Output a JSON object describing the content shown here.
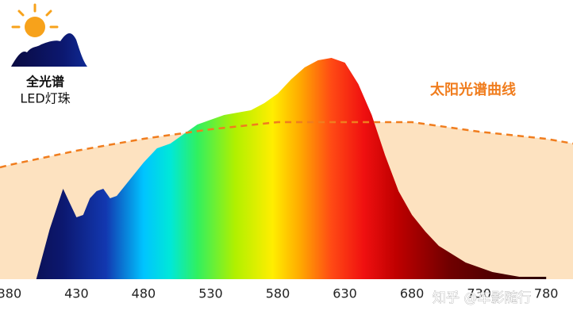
{
  "chart_data": {
    "type": "area",
    "xlim": [
      373,
      800
    ],
    "ylim": [
      0,
      100
    ],
    "xticks": [
      380,
      430,
      480,
      530,
      580,
      630,
      680,
      730,
      780
    ],
    "annotations": [
      "全光谱",
      "LED灯珠",
      "知乎 @车影随行"
    ],
    "series": [
      {
        "x": [
          380,
          400,
          410,
          420,
          425,
          430,
          435,
          440,
          445,
          450,
          455,
          460,
          470,
          480,
          490,
          500,
          510,
          520,
          530,
          540,
          550,
          560,
          570,
          580,
          590,
          600,
          610,
          620,
          630,
          640,
          650,
          660,
          670,
          680,
          690,
          700,
          720,
          740,
          760,
          780
        ],
        "values": [
          0,
          0,
          21,
          38,
          32,
          26,
          27,
          34,
          37,
          38,
          34,
          35,
          42,
          49,
          55,
          57,
          61,
          65,
          67,
          69,
          70,
          71,
          74,
          78,
          84,
          89,
          92,
          93,
          91,
          82,
          69,
          52,
          37,
          27,
          20,
          14,
          7,
          3,
          1,
          1
        ]
      },
      {
        "name": "太阳光谱曲线",
        "color": "#f07d1e",
        "fill": "#fde2c0",
        "dashed": true,
        "x": [
          373,
          380,
          430,
          480,
          530,
          580,
          630,
          680,
          730,
          780,
          800
        ],
        "values": [
          47,
          48,
          54,
          59,
          63,
          66,
          66,
          66,
          62,
          59,
          57
        ]
      }
    ]
  }
}
